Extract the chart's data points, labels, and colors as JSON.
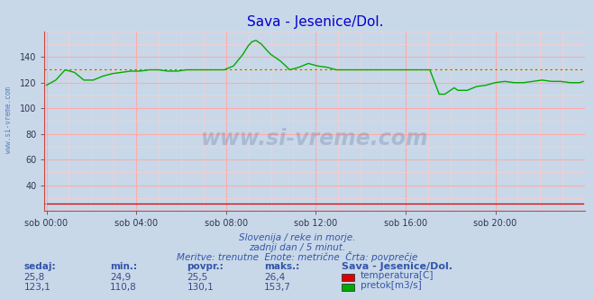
{
  "title": "Sava - Jesenice/Dol.",
  "title_color": "#0000cc",
  "bg_color": "#c8d8e8",
  "plot_bg_color": "#c8d8e8",
  "xlim": [
    0,
    287
  ],
  "ylim": [
    20,
    160
  ],
  "yticks": [
    40,
    60,
    80,
    100,
    120,
    140
  ],
  "xtick_labels": [
    "sob 00:00",
    "sob 04:00",
    "sob 08:00",
    "sob 12:00",
    "sob 16:00",
    "sob 20:00"
  ],
  "xtick_positions": [
    0,
    48,
    96,
    144,
    192,
    240
  ],
  "grid_color_major": "#ffaaaa",
  "grid_color_minor": "#ffcccc",
  "temp_color": "#dd0000",
  "flow_color": "#00aa00",
  "avg_flow": 130.1,
  "avg_temp": 25.5,
  "footer_lines": [
    "Slovenija / reke in morje.",
    "zadnji dan / 5 minut.",
    "Meritve: trenutne  Enote: metrične  Črta: povprečje"
  ],
  "footer_color": "#3355aa",
  "table_headers": [
    "sedaj:",
    "min.:",
    "povpr.:",
    "maks.:",
    "Sava - Jesenice/Dol."
  ],
  "table_row1": [
    "25,8",
    "24,9",
    "25,5",
    "26,4"
  ],
  "table_row2": [
    "123,1",
    "110,8",
    "130,1",
    "153,7"
  ],
  "table_label1": "temperatura[C]",
  "table_label2": "pretok[m3/s]",
  "watermark": "www.si-vreme.com",
  "watermark_color": "#1a3a7a",
  "watermark_alpha": 0.18,
  "ylabel_text": "www.si-vreme.com",
  "ylabel_color": "#3355aa"
}
